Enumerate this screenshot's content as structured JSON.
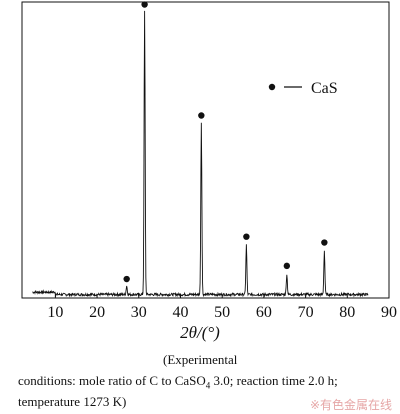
{
  "chart_data": {
    "type": "line",
    "xlabel": "2θ/(°)",
    "ylabel": "",
    "xlim": [
      2,
      90
    ],
    "ylim": [
      0,
      100
    ],
    "x_ticks": [
      10,
      20,
      30,
      40,
      50,
      60,
      70,
      80,
      90
    ],
    "x_tick_labels": [
      "10",
      "20",
      "30",
      "40",
      "50",
      "60",
      "70",
      "80",
      "90"
    ],
    "y_ticks_shown": false,
    "grid": false,
    "legend": {
      "position": "top-right",
      "entries": [
        {
          "marker": "filled-circle",
          "label": "CaS"
        }
      ]
    },
    "series": [
      {
        "name": "CaS",
        "peaks": [
          {
            "x": 27.1,
            "y": 3
          },
          {
            "x": 31.4,
            "y": 97
          },
          {
            "x": 45.0,
            "y": 59
          },
          {
            "x": 55.8,
            "y": 17
          },
          {
            "x": 65.5,
            "y": 7
          },
          {
            "x": 74.5,
            "y": 15
          }
        ],
        "baseline": 1.2
      }
    ],
    "peak_markers": [
      {
        "x": 27.1,
        "y": 6.5
      },
      {
        "x": 31.4,
        "y": 100.5
      },
      {
        "x": 45.0,
        "y": 62.5
      },
      {
        "x": 55.8,
        "y": 21
      },
      {
        "x": 65.5,
        "y": 11
      },
      {
        "x": 74.5,
        "y": 19
      }
    ]
  },
  "caption": {
    "line1": "(Experimental",
    "line2_prefix": "conditions: mole ratio of C to CaSO",
    "line2_sub": "4",
    "line2_suffix": " 3.0; reaction time 2.0 h;",
    "line3": "temperature 1273 K)"
  },
  "watermark": "※有色金属在线",
  "colors": {
    "line": "#111111",
    "watermark": "#e6a6a6"
  }
}
